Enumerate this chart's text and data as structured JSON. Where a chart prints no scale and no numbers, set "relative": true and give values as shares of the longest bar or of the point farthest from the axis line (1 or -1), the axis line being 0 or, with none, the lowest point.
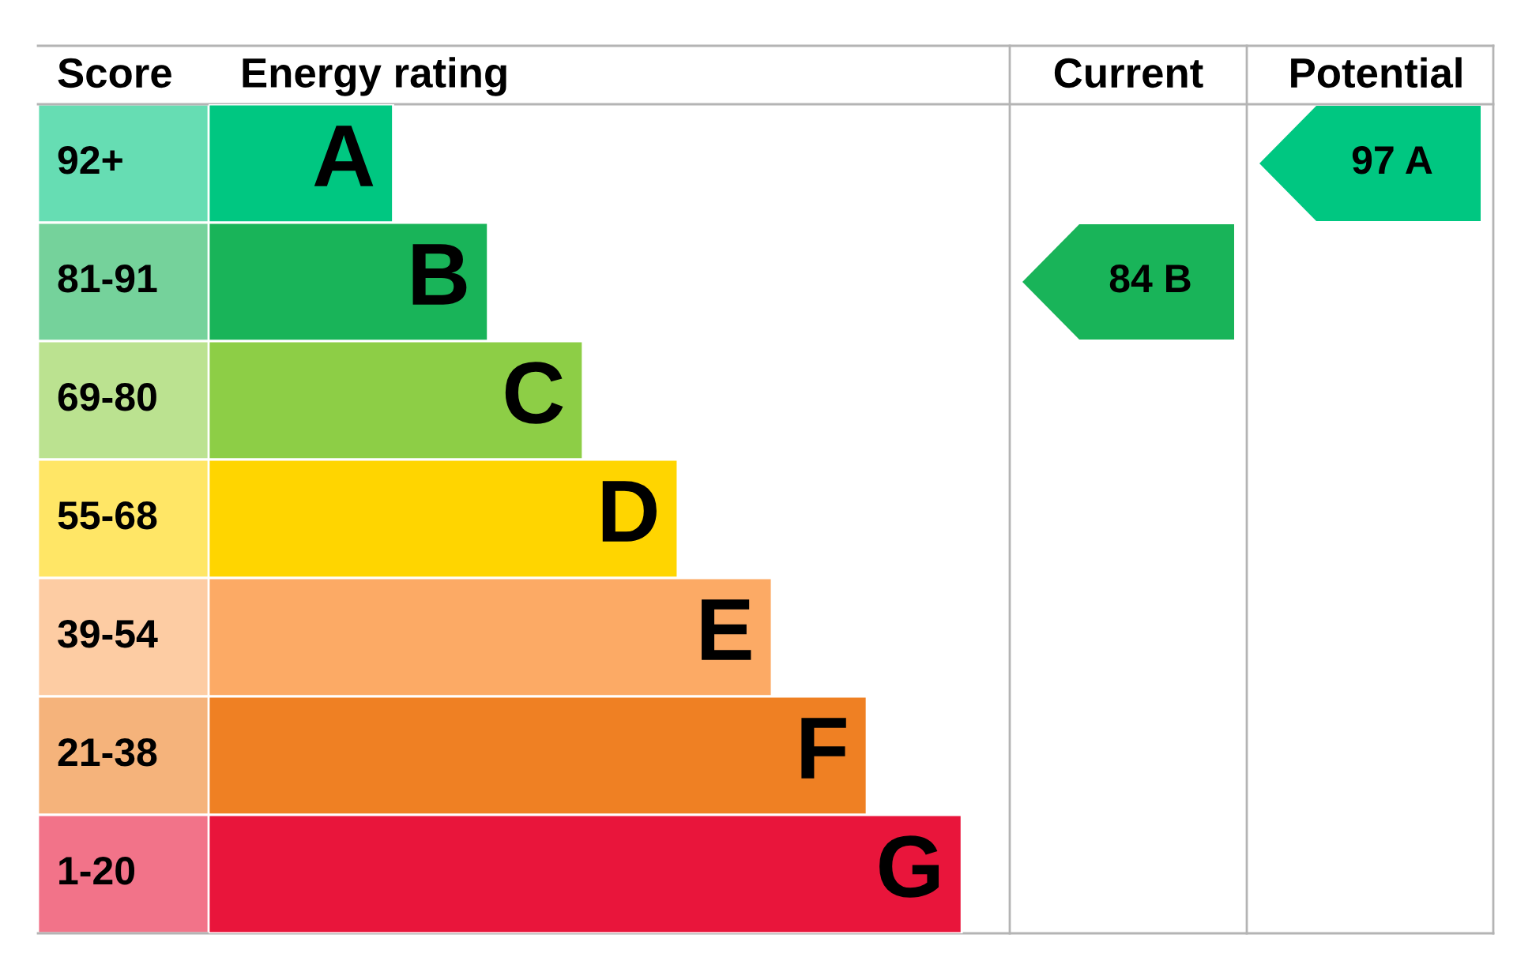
{
  "chart_data": {
    "type": "bar",
    "orientation": "horizontal",
    "relative": true,
    "categories": [
      "A",
      "B",
      "C",
      "D",
      "E",
      "F",
      "G"
    ],
    "values": [
      0.245,
      0.371,
      0.497,
      0.623,
      0.748,
      0.874,
      1
    ],
    "colors": [
      "#00c781",
      "#19b459",
      "#8dce46",
      "#ffd500",
      "#fcaa65",
      "#ef8023",
      "#e9153b"
    ],
    "annotations": [
      "Score",
      "Energy rating",
      "Current",
      "Potential",
      "92+",
      "81-91",
      "69-80",
      "55-68",
      "39-54",
      "21-38",
      "1-20",
      "84 B",
      "97 A"
    ]
  }
}
